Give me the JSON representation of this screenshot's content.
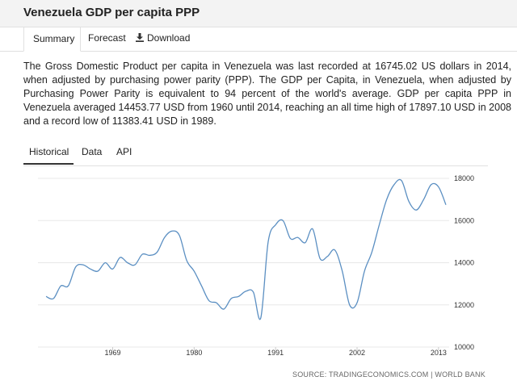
{
  "header": {
    "title": "Venezuela GDP per capita PPP"
  },
  "top_tabs": [
    {
      "label": "Summary",
      "active": true
    },
    {
      "label": "Forecast",
      "active": false
    },
    {
      "label": "Download",
      "icon": "download-icon",
      "active": false
    }
  ],
  "description": "The Gross Domestic Product per capita in Venezuela was last recorded at 16745.02 US dollars in 2014, when adjusted by purchasing power parity (PPP). The GDP per Capita, in Venezuela, when adjusted by Purchasing Power Parity is equivalent to 94 percent of the world's average. GDP per capita PPP in Venezuela averaged 14453.77 USD from 1960 until 2014, reaching an all time high of 17897.10 USD in 2008 and a record low of 11383.41 USD in 1989.",
  "chart_tabs": [
    {
      "label": "Historical",
      "active": true
    },
    {
      "label": "Data",
      "active": false
    },
    {
      "label": "API",
      "active": false
    }
  ],
  "source": "SOURCE: TRADINGECONOMICS.COM | WORLD BANK",
  "colors": {
    "line": "#5b8fc2",
    "grid": "#e8e8e8"
  },
  "chart_data": {
    "type": "line",
    "title": "",
    "xlabel": "",
    "ylabel": "",
    "xlim": [
      1960,
      2014
    ],
    "ylim": [
      10000,
      18000
    ],
    "x_ticks": [
      1969,
      1980,
      1991,
      2002,
      2013
    ],
    "y_ticks": [
      10000,
      12000,
      14000,
      16000,
      18000
    ],
    "grid": "horizontal",
    "series": [
      {
        "x": [
          1960,
          1961,
          1962,
          1963,
          1964,
          1965,
          1966,
          1967,
          1968,
          1969,
          1970,
          1971,
          1972,
          1973,
          1974,
          1975,
          1976,
          1977,
          1978,
          1979,
          1980,
          1981,
          1982,
          1983,
          1984,
          1985,
          1986,
          1987,
          1988,
          1989,
          1990,
          1991,
          1992,
          1993,
          1994,
          1995,
          1996,
          1997,
          1998,
          1999,
          2000,
          2001,
          2002,
          2003,
          2004,
          2005,
          2006,
          2007,
          2008,
          2009,
          2010,
          2011,
          2012,
          2013,
          2014
        ],
        "values": [
          12400,
          12300,
          12900,
          12900,
          13800,
          13900,
          13700,
          13600,
          14000,
          13700,
          14250,
          14000,
          13900,
          14400,
          14350,
          14500,
          15200,
          15500,
          15300,
          14100,
          13600,
          12900,
          12200,
          12100,
          11800,
          12300,
          12400,
          12650,
          12600,
          11383,
          15000,
          15800,
          16000,
          15150,
          15200,
          14950,
          15600,
          14200,
          14300,
          14600,
          13600,
          12000,
          12100,
          13600,
          14500,
          15800,
          17000,
          17700,
          17897,
          16900,
          16500,
          17000,
          17700,
          17600,
          16745
        ]
      }
    ]
  }
}
